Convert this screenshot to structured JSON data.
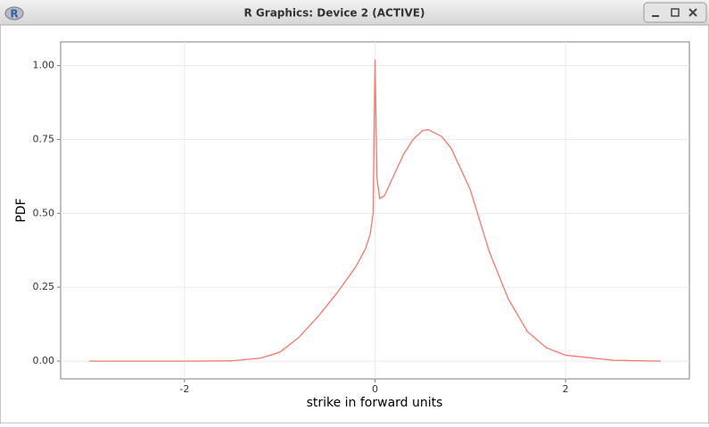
{
  "window": {
    "title": "R Graphics: Device 2 (ACTIVE)"
  },
  "chart_data": {
    "type": "line",
    "xlabel": "strike in forward units",
    "ylabel": "PDF",
    "x": [
      -3,
      -2,
      -1.5,
      -1.2,
      -1,
      -0.8,
      -0.6,
      -0.4,
      -0.2,
      -0.1,
      -0.05,
      -0.02,
      0,
      0.02,
      0.05,
      0.1,
      0.2,
      0.3,
      0.4,
      0.5,
      0.56,
      0.7,
      0.8,
      1.0,
      1.2,
      1.4,
      1.6,
      1.8,
      2.0,
      2.5,
      3.0
    ],
    "series": [
      {
        "color": "#f8766d",
        "values": [
          0,
          0,
          0.001,
          0.01,
          0.03,
          0.08,
          0.15,
          0.23,
          0.32,
          0.38,
          0.43,
          0.5,
          1.02,
          0.62,
          0.55,
          0.56,
          0.63,
          0.7,
          0.75,
          0.78,
          0.783,
          0.76,
          0.72,
          0.58,
          0.37,
          0.21,
          0.1,
          0.045,
          0.02,
          0.003,
          0
        ]
      }
    ],
    "xlim": [
      -3.3,
      3.3
    ],
    "ylim": [
      -0.06,
      1.08
    ],
    "xticks": [
      -2,
      0,
      2
    ],
    "yticks": [
      {
        "value": 0,
        "label": "0.00"
      },
      {
        "value": 0.25,
        "label": "0.25"
      },
      {
        "value": 0.5,
        "label": "0.50"
      },
      {
        "value": 0.75,
        "label": "0.75"
      },
      {
        "value": 1,
        "label": "1.00"
      }
    ],
    "grid": true
  }
}
